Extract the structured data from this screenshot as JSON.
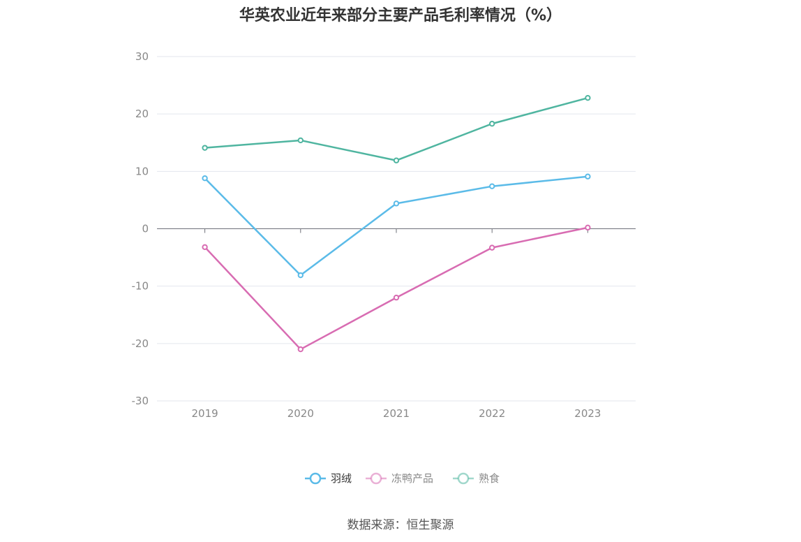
{
  "title": "华英农业近年来部分主要产品毛利率情况（%）",
  "source": "数据来源：恒生聚源",
  "chart_data": {
    "type": "line",
    "title": "华英农业近年来部分主要产品毛利率情况（%）",
    "categories": [
      "2019",
      "2020",
      "2021",
      "2022",
      "2023"
    ],
    "ylim": [
      -30,
      30
    ],
    "yticks": [
      30,
      20,
      10,
      0,
      -10,
      -20,
      -30
    ],
    "grid": true,
    "legend_position": "bottom-center",
    "series": [
      {
        "name": "羽绒",
        "color": "#5bbbe8",
        "values": [
          8.8,
          -8.1,
          4.4,
          7.4,
          9.1
        ]
      },
      {
        "name": "冻鸭产品",
        "color": "#d86cb2",
        "values": [
          -3.2,
          -21.0,
          -12.0,
          -3.3,
          0.2
        ]
      },
      {
        "name": "熟食",
        "color": "#4fb5a0",
        "values": [
          14.1,
          15.4,
          11.9,
          18.3,
          22.8
        ]
      }
    ]
  }
}
